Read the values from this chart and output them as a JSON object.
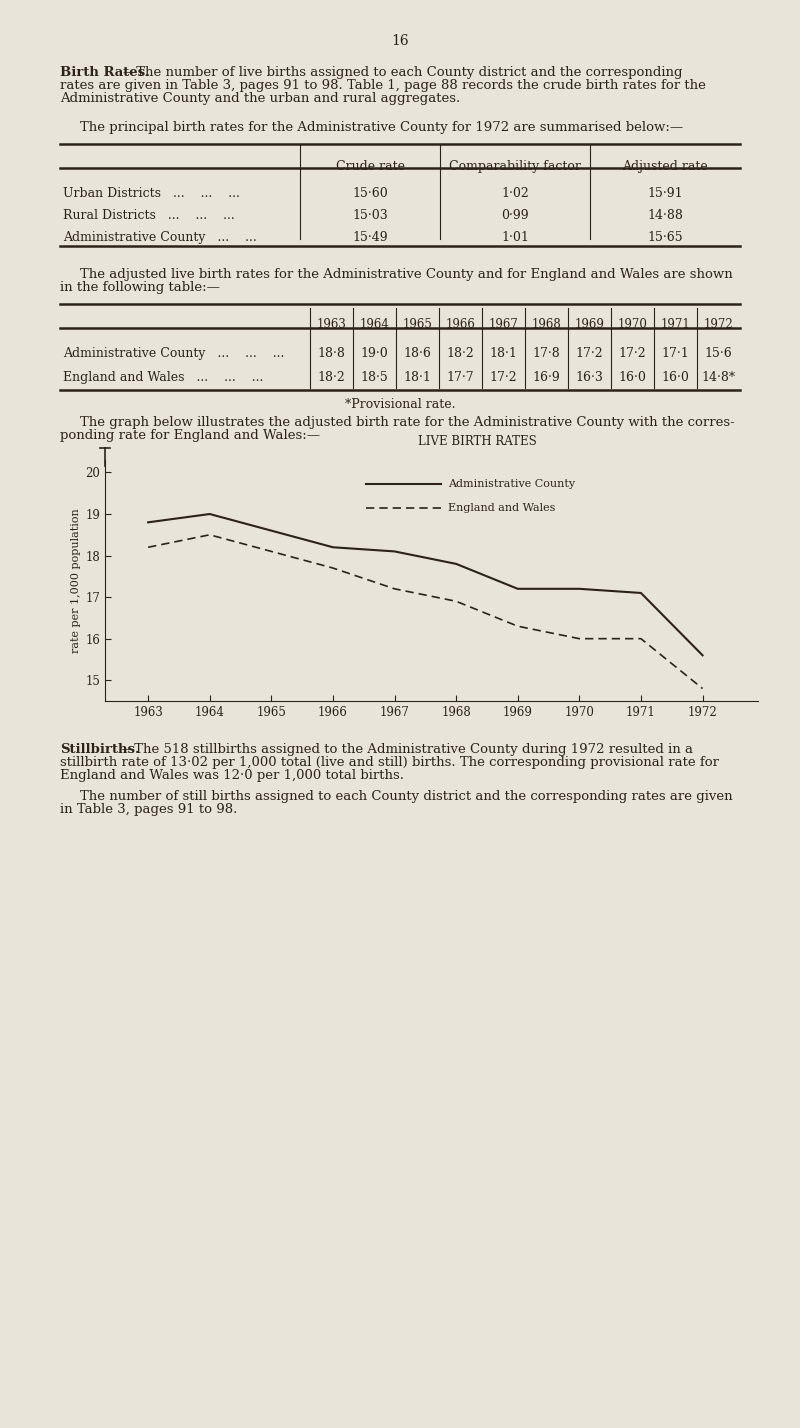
{
  "page_number": "16",
  "bg_color": "#e8e4da",
  "text_color": "#2b2318",
  "para1_bold": "Birth Rates.",
  "para1_rest": "—The number of live births assigned to each County district and the corresponding",
  "para1_line2": "rates are given in Table 3, pages 91 to 98. Table 1, page 88 records the crude birth rates for the",
  "para1_line3": "Administrative County and the urban and rural aggregates.",
  "para2_intro": "The principal birth rates for the Administrative County for 1972 are summarised below:—",
  "table1_headers": [
    "Crude rate",
    "Comparability factor",
    "Adjusted rate"
  ],
  "table1_row_labels": [
    "Urban Districts   ...    ...    ...",
    "Rural Districts   ...    ...    ...",
    "Administrative County   ...    ..."
  ],
  "table1_crude": [
    "15·60",
    "15·03",
    "15·49"
  ],
  "table1_comp": [
    "1·02",
    "0·99",
    "1·01"
  ],
  "table1_adj": [
    "15·91",
    "14·88",
    "15·65"
  ],
  "para3_line1": "The adjusted live birth rates for the Administrative County and for England and Wales are shown",
  "para3_line2": "in the following table:—",
  "table2_years": [
    "1963",
    "1964",
    "1965",
    "1966",
    "1967",
    "1968",
    "1969",
    "1970",
    "1971",
    "1972"
  ],
  "table2_labels": [
    "Administrative County   ...    ...    ...",
    "England and Wales   ...    ...    ..."
  ],
  "table2_row_vals_str": [
    [
      "18·8",
      "19·0",
      "18·6",
      "18·2",
      "18·1",
      "17·8",
      "17·2",
      "17·2",
      "17·1",
      "15·6"
    ],
    [
      "18·2",
      "18·5",
      "18·1",
      "17·7",
      "17·2",
      "16·9",
      "16·3",
      "16·0",
      "16·0",
      "14·8*"
    ]
  ],
  "provisional_note": "*Provisional rate.",
  "para4_line1": "The graph below illustrates the adjusted birth rate for the Administrative County with the corres-",
  "para4_line2": "ponding rate for England and Wales:—",
  "chart_title": "LIVE BIRTH RATES",
  "chart_legend": [
    "Administrative County",
    "England and Wales"
  ],
  "chart_years": [
    1963,
    1964,
    1965,
    1966,
    1967,
    1968,
    1969,
    1970,
    1971,
    1972
  ],
  "admin_county_vals": [
    18.8,
    19.0,
    18.6,
    18.2,
    18.1,
    17.8,
    17.2,
    17.2,
    17.1,
    15.6
  ],
  "england_wales_vals": [
    18.2,
    18.5,
    18.1,
    17.7,
    17.2,
    16.9,
    16.3,
    16.0,
    16.0,
    14.8
  ],
  "chart_ylabel": "rate per 1,000 population",
  "chart_yticks": [
    15,
    16,
    17,
    18,
    19,
    20
  ],
  "chart_ylim": [
    14.5,
    20.3
  ],
  "para5_bold": "Stillbirths.",
  "para5_rest": "—The 518 stillbirths assigned to the Administrative County during 1972 resulted in a",
  "para5_line2": "stillbirth rate of 13·02 per 1,000 total (live and still) births. The corresponding provisional rate for",
  "para5_line3": "England and Wales was 12·0 per 1,000 total births.",
  "para6_line1": "The number of still births assigned to each County district and the corresponding rates are given",
  "para6_line2": "in Table 3, pages 91 to 98."
}
